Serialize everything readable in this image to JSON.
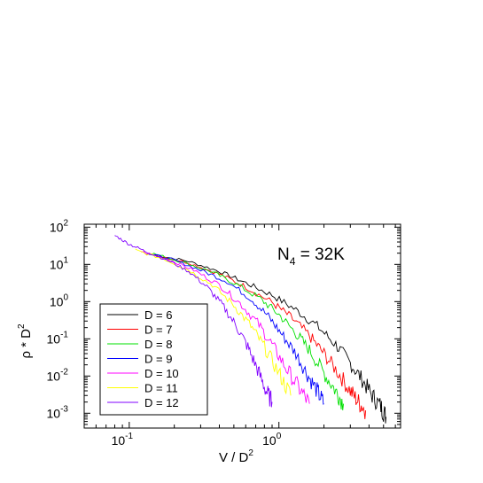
{
  "chart_data": {
    "type": "line",
    "x_scale": "log",
    "y_scale": "log",
    "xlim": [
      0.05,
      6.5
    ],
    "ylim": [
      0.0004,
      120
    ],
    "x_ticks": [
      {
        "value": 0.1,
        "base": "10",
        "exp": "-1"
      },
      {
        "value": 1,
        "base": "10",
        "exp": "0"
      }
    ],
    "y_ticks": [
      {
        "value": 100,
        "base": "10",
        "exp": "2"
      },
      {
        "value": 10,
        "base": "10",
        "exp": "1"
      },
      {
        "value": 1,
        "base": "10",
        "exp": "0"
      },
      {
        "value": 0.1,
        "base": "10",
        "exp": "-1"
      },
      {
        "value": 0.01,
        "base": "10",
        "exp": "-2"
      },
      {
        "value": 0.001,
        "base": "10",
        "exp": "-3"
      }
    ],
    "xlabel": {
      "main": "V / D",
      "sup": "2"
    },
    "ylabel": {
      "main": "ρ * D",
      "sup": "2"
    },
    "annotation": {
      "main": "N",
      "sub": "4",
      "rest": " = 32K"
    },
    "legend_position": "bottom-left",
    "grid": false,
    "series": [
      {
        "name": "D = 6",
        "color": "#000000",
        "x": [
          0.15,
          0.25,
          0.4,
          0.6,
          0.9,
          1.3,
          1.8,
          2.4,
          3.0,
          3.6,
          4.2,
          4.8,
          5.2
        ],
        "y": [
          18,
          12,
          6.5,
          3.2,
          1.5,
          0.6,
          0.22,
          0.07,
          0.022,
          0.008,
          0.003,
          0.0015,
          0.0008
        ]
      },
      {
        "name": "D = 7",
        "color": "#ff0000",
        "x": [
          0.15,
          0.25,
          0.4,
          0.6,
          0.9,
          1.2,
          1.6,
          2.0,
          2.5,
          3.0,
          3.4,
          3.8
        ],
        "y": [
          18,
          11,
          5.5,
          2.5,
          0.95,
          0.38,
          0.12,
          0.04,
          0.012,
          0.004,
          0.002,
          0.0012
        ]
      },
      {
        "name": "D = 8",
        "color": "#00e000",
        "x": [
          0.14,
          0.22,
          0.35,
          0.5,
          0.75,
          1.0,
          1.3,
          1.6,
          2.0,
          2.4,
          2.7
        ],
        "y": [
          20,
          12,
          6.5,
          3.2,
          1.2,
          0.45,
          0.14,
          0.05,
          0.012,
          0.004,
          0.0018
        ]
      },
      {
        "name": "D = 9",
        "color": "#0000ff",
        "x": [
          0.13,
          0.2,
          0.3,
          0.45,
          0.65,
          0.85,
          1.05,
          1.3,
          1.55,
          1.8,
          2.0
        ],
        "y": [
          20,
          13,
          7,
          3.5,
          1.2,
          0.4,
          0.13,
          0.04,
          0.011,
          0.004,
          0.0018
        ]
      },
      {
        "name": "D = 10",
        "color": "#ff00ff",
        "x": [
          0.12,
          0.18,
          0.27,
          0.4,
          0.55,
          0.72,
          0.9,
          1.1,
          1.35,
          1.6
        ],
        "y": [
          22,
          14,
          7,
          2.8,
          0.9,
          0.27,
          0.07,
          0.018,
          0.005,
          0.0018
        ]
      },
      {
        "name": "D = 11",
        "color": "#ffff00",
        "x": [
          0.11,
          0.17,
          0.25,
          0.36,
          0.5,
          0.65,
          0.8,
          1.0,
          1.2
        ],
        "y": [
          24,
          14,
          7,
          2.8,
          0.8,
          0.22,
          0.06,
          0.012,
          0.003
        ]
      },
      {
        "name": "D = 12",
        "color": "#8000ff",
        "x": [
          0.08,
          0.1,
          0.13,
          0.18,
          0.25,
          0.33,
          0.42,
          0.52,
          0.62,
          0.72,
          0.82,
          0.9
        ],
        "y": [
          60,
          35,
          22,
          13,
          6.5,
          2.5,
          0.8,
          0.22,
          0.06,
          0.015,
          0.004,
          0.002
        ]
      }
    ]
  }
}
